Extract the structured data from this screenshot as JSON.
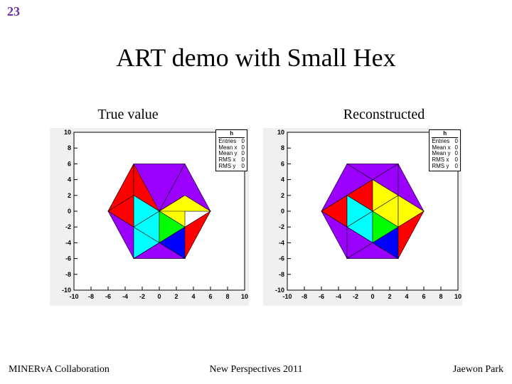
{
  "page_number": "23",
  "title": "ART demo with Small Hex",
  "left_label": "True value",
  "right_label": "Reconstructed",
  "footer_left": "MINERvA Collaboration",
  "footer_center": "New Perspectives 2011",
  "footer_right": "Jaewon Park",
  "colors": {
    "bg": "#f0f0f0",
    "purple": "#9b00ff",
    "red": "#ff0000",
    "orange": "#ff7f00",
    "yellow": "#ffff00",
    "green": "#00ff00",
    "cyan": "#00ffff",
    "blue": "#0000ff",
    "frame": "#000000"
  },
  "axis": {
    "xlim": [
      -10,
      10
    ],
    "ylim": [
      -10,
      10
    ],
    "ticks": [
      -10,
      -8,
      -6,
      -4,
      -2,
      0,
      2,
      4,
      6,
      8,
      10
    ]
  },
  "stats": {
    "title": "h",
    "rows": [
      [
        "Entries",
        "0"
      ],
      [
        "Mean x",
        "0"
      ],
      [
        "Mean y",
        "0"
      ],
      [
        "RMS x",
        "0"
      ],
      [
        "RMS y",
        "0"
      ]
    ]
  },
  "plot_true": [
    {
      "p": "-6,0 -3,6 3,6 0,0",
      "c": "#9b00ff"
    },
    {
      "p": "3,6 6,0 0,0",
      "c": "#9b00ff"
    },
    {
      "p": "-6,0 -3,2 -3,6",
      "c": "#ff0000"
    },
    {
      "p": "-3,2 0,0 -3,6",
      "c": "#ff0000"
    },
    {
      "p": "-3,2 -3,-2 0,0",
      "c": "#00ffff"
    },
    {
      "p": "0,0 3,2 3,-2",
      "c": "#ffff00"
    },
    {
      "p": "0,0 3,2 6,0",
      "c": "#ffff00"
    },
    {
      "p": "-6,0 -3,-2 -3,2",
      "c": "#ff0000"
    },
    {
      "p": "-6,0 -3,-6 -3,-2",
      "c": "#9b00ff"
    },
    {
      "p": "-3,-2 -3,-6 0,-4",
      "c": "#00ffff"
    },
    {
      "p": "-3,-2 0,-4 0,0",
      "c": "#00ffff"
    },
    {
      "p": "0,0 0,-4 3,-2",
      "c": "#00ff00"
    },
    {
      "p": "3,-2 0,-4 3,-6",
      "c": "#0000ff"
    },
    {
      "p": "3,-2 3,-6 6,0",
      "c": "#ff0000"
    },
    {
      "p": "-3,-6 3,-6 0,-4",
      "c": "#9b00ff"
    },
    {
      "p": "-3,-6 0,-4 0,-4",
      "c": "#9b00ff"
    }
  ],
  "plot_reco": [
    {
      "p": "-6,0 -3,6 0,4",
      "c": "#9b00ff"
    },
    {
      "p": "-3,6 0,4 3,6",
      "c": "#9b00ff"
    },
    {
      "p": "0,4 3,6 3,2",
      "c": "#9b00ff"
    },
    {
      "p": "3,6 6,0 3,2",
      "c": "#9b00ff"
    },
    {
      "p": "-6,0 -3,2 0,4",
      "c": "#ff7f00"
    },
    {
      "p": "-3,2 0,0 0,4",
      "c": "#ff0000"
    },
    {
      "p": "0,4 0,0 3,2",
      "c": "#ffff00"
    },
    {
      "p": "3,2 0,0 3,-2",
      "c": "#ffff00"
    },
    {
      "p": "3,2 3,-2 6,0",
      "c": "#ffff00"
    },
    {
      "p": "-6,0 -3,-2 -3,2",
      "c": "#ff0000"
    },
    {
      "p": "-3,2 -3,-2 0,0",
      "c": "#00ffff"
    },
    {
      "p": "0,0 -3,-2 0,-4",
      "c": "#00ffff"
    },
    {
      "p": "-6,0 -3,-6 -3,-2",
      "c": "#9b00ff"
    },
    {
      "p": "-3,-2 -3,-6 0,-4",
      "c": "#9b00ff"
    },
    {
      "p": "0,0 0,-4 3,-2",
      "c": "#00ff00"
    },
    {
      "p": "0,-4 3,-6 3,-2",
      "c": "#0000ff"
    },
    {
      "p": "3,-2 3,-6 6,0",
      "c": "#ff0000"
    },
    {
      "p": "-3,-6 3,-6 0,-4",
      "c": "#9b00ff"
    }
  ]
}
